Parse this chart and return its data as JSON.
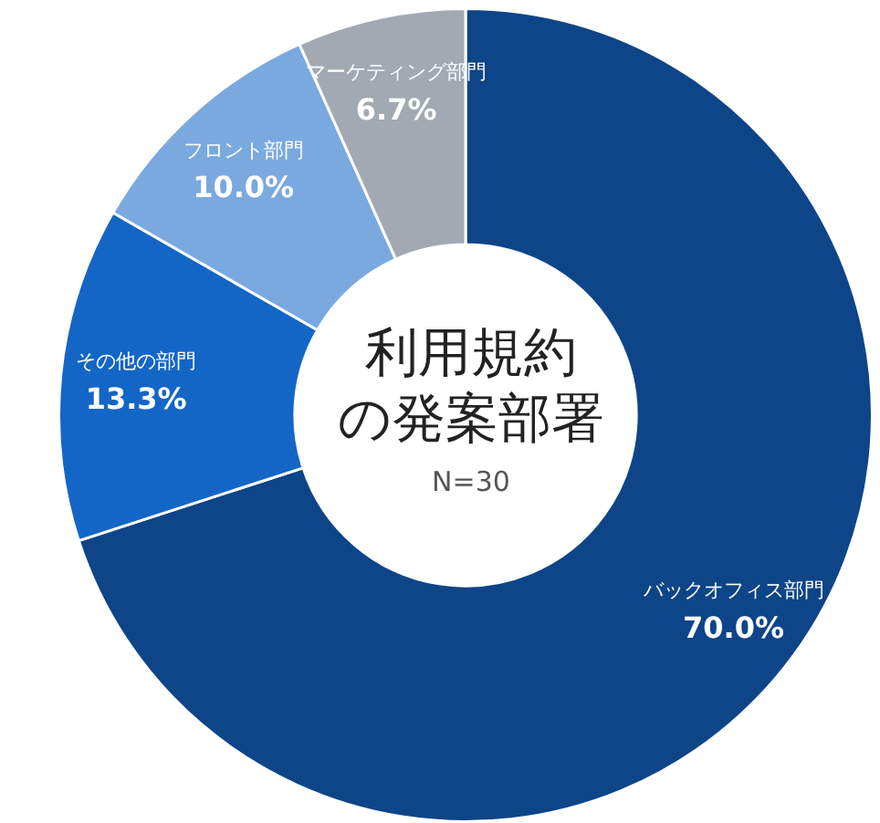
{
  "chart_data": {
    "type": "donut",
    "title": "利用規約の発案部署",
    "subtitle": "N=30",
    "categories": [
      "バックオフィス部門",
      "その他の部門",
      "フロント部門",
      "マーケティング部門"
    ],
    "values": [
      70.0,
      13.3,
      10.0,
      6.7
    ],
    "value_labels": [
      "70.0%",
      "13.3%",
      "10.0%",
      "6.7%"
    ],
    "colors": [
      "#0e4588",
      "#1466c6",
      "#7aa9e0",
      "#a2a9b3"
    ],
    "legend": false
  }
}
